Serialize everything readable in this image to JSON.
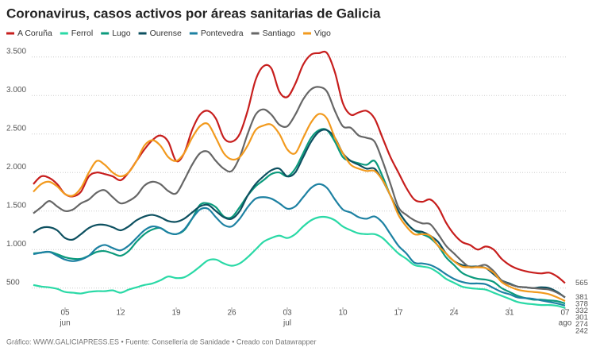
{
  "chart_data": {
    "type": "line",
    "title": "Coronavirus, casos activos por áreas sanitarias de Galicia",
    "footer": "Gráfico: WWW.GALICIAPRESS.ES • Fuente: Consellería de Sanidade • Creado con Datawrapper",
    "categories": [
      null,
      null,
      null,
      null,
      "05",
      null,
      null,
      null,
      null,
      null,
      null,
      "12",
      null,
      null,
      null,
      null,
      null,
      null,
      "19",
      null,
      null,
      null,
      null,
      null,
      null,
      "26",
      null,
      null,
      null,
      null,
      null,
      null,
      "03",
      null,
      null,
      null,
      null,
      null,
      null,
      "10",
      null,
      null,
      null,
      null,
      null,
      null,
      "17",
      null,
      null,
      null,
      null,
      null,
      null,
      "24",
      null,
      null,
      null,
      null,
      null,
      null,
      "31",
      null,
      null,
      null,
      null,
      null,
      null,
      "07"
    ],
    "x_month_labels": [
      null,
      null,
      null,
      null,
      "jun",
      null,
      null,
      null,
      null,
      null,
      null,
      null,
      null,
      null,
      null,
      null,
      null,
      null,
      null,
      null,
      null,
      null,
      null,
      null,
      null,
      null,
      null,
      null,
      null,
      null,
      null,
      null,
      "jul",
      null,
      null,
      null,
      null,
      null,
      null,
      null,
      null,
      null,
      null,
      null,
      null,
      null,
      null,
      null,
      null,
      null,
      null,
      null,
      null,
      null,
      null,
      null,
      null,
      null,
      null,
      null,
      null,
      null,
      null,
      null,
      null,
      null,
      null,
      "ago"
    ],
    "ylim": [
      250,
      3600
    ],
    "yticks": [
      500,
      {
        "value": 1000,
        "label": "1.000"
      },
      {
        "value": 1500,
        "label": "1.500"
      },
      {
        "value": 2000,
        "label": "2.000"
      },
      {
        "value": 2500,
        "label": "2.500"
      },
      {
        "value": 3000,
        "label": "3.000"
      },
      {
        "value": 3500,
        "label": "3.500"
      }
    ],
    "grid": true,
    "series": [
      {
        "name": "A Coruña",
        "color": "#c71e1d",
        "values": [
          1850,
          1950,
          1930,
          1850,
          1720,
          1690,
          1750,
          1950,
          2000,
          1980,
          1950,
          1900,
          2000,
          2150,
          2300,
          2420,
          2480,
          2400,
          2150,
          2250,
          2550,
          2750,
          2800,
          2700,
          2450,
          2400,
          2500,
          2800,
          3200,
          3380,
          3350,
          3050,
          2980,
          3150,
          3400,
          3530,
          3550,
          3550,
          3300,
          2900,
          2750,
          2780,
          2800,
          2700,
          2450,
          2200,
          2000,
          1800,
          1650,
          1620,
          1650,
          1550,
          1350,
          1200,
          1100,
          1060,
          1000,
          1040,
          1000,
          880,
          800,
          750,
          720,
          700,
          690,
          700,
          650,
          565
        ]
      },
      {
        "name": "Ferrol",
        "color": "#2ad9a6",
        "values": [
          540,
          520,
          510,
          490,
          450,
          440,
          430,
          450,
          460,
          460,
          470,
          440,
          480,
          510,
          540,
          560,
          600,
          650,
          630,
          640,
          700,
          780,
          860,
          870,
          820,
          790,
          820,
          900,
          1000,
          1100,
          1150,
          1180,
          1150,
          1200,
          1300,
          1380,
          1420,
          1420,
          1380,
          1300,
          1250,
          1210,
          1200,
          1200,
          1150,
          1050,
          950,
          880,
          800,
          780,
          760,
          700,
          620,
          570,
          520,
          500,
          490,
          480,
          440,
          400,
          360,
          320,
          300,
          290,
          280,
          280,
          270,
          242
        ]
      },
      {
        "name": "Lugo",
        "color": "#0b9a7c",
        "values": [
          950,
          960,
          970,
          940,
          900,
          880,
          880,
          920,
          970,
          980,
          950,
          920,
          980,
          1100,
          1200,
          1260,
          1280,
          1220,
          1200,
          1250,
          1400,
          1580,
          1600,
          1550,
          1430,
          1420,
          1550,
          1700,
          1820,
          1900,
          1980,
          2000,
          1950,
          2050,
          2250,
          2450,
          2550,
          2550,
          2400,
          2200,
          2150,
          2120,
          2100,
          2150,
          1950,
          1700,
          1500,
          1350,
          1250,
          1200,
          1150,
          1050,
          900,
          800,
          700,
          650,
          620,
          610,
          580,
          500,
          450,
          400,
          370,
          350,
          350,
          340,
          330,
          301
        ]
      },
      {
        "name": "Ourense",
        "color": "#0d5060",
        "values": [
          1220,
          1280,
          1290,
          1250,
          1150,
          1130,
          1200,
          1280,
          1320,
          1320,
          1290,
          1250,
          1300,
          1380,
          1430,
          1450,
          1420,
          1370,
          1360,
          1400,
          1480,
          1560,
          1580,
          1500,
          1420,
          1400,
          1500,
          1700,
          1850,
          1950,
          2030,
          2050,
          1950,
          2000,
          2200,
          2400,
          2530,
          2550,
          2450,
          2250,
          2150,
          2100,
          2050,
          2050,
          1900,
          1700,
          1500,
          1350,
          1250,
          1230,
          1180,
          1100,
          950,
          850,
          800,
          780,
          780,
          760,
          680,
          600,
          560,
          520,
          510,
          500,
          510,
          500,
          450,
          378
        ]
      },
      {
        "name": "Pontevedra",
        "color": "#1d81a2",
        "values": [
          940,
          960,
          970,
          920,
          870,
          850,
          870,
          920,
          1020,
          1060,
          1020,
          990,
          1050,
          1150,
          1250,
          1300,
          1280,
          1220,
          1200,
          1260,
          1400,
          1520,
          1530,
          1420,
          1320,
          1300,
          1400,
          1550,
          1660,
          1680,
          1660,
          1600,
          1530,
          1560,
          1680,
          1800,
          1850,
          1800,
          1650,
          1520,
          1480,
          1420,
          1400,
          1430,
          1350,
          1200,
          1050,
          950,
          830,
          820,
          800,
          750,
          680,
          620,
          580,
          560,
          560,
          550,
          500,
          450,
          420,
          380,
          370,
          360,
          340,
          320,
          300,
          274
        ]
      },
      {
        "name": "Santiago",
        "color": "#666666",
        "values": [
          1470,
          1550,
          1630,
          1560,
          1500,
          1520,
          1600,
          1650,
          1740,
          1770,
          1680,
          1600,
          1630,
          1700,
          1830,
          1880,
          1850,
          1760,
          1730,
          1900,
          2100,
          2250,
          2270,
          2150,
          2050,
          2020,
          2200,
          2500,
          2750,
          2820,
          2750,
          2620,
          2600,
          2750,
          2950,
          3080,
          3110,
          3050,
          2800,
          2600,
          2580,
          2480,
          2450,
          2400,
          2150,
          1850,
          1550,
          1450,
          1380,
          1340,
          1330,
          1200,
          1050,
          950,
          850,
          770,
          780,
          800,
          720,
          600,
          550,
          520,
          510,
          500,
          490,
          480,
          440,
          381
        ]
      },
      {
        "name": "Vigo",
        "color": "#f29a1e",
        "values": [
          1750,
          1850,
          1880,
          1820,
          1720,
          1700,
          1800,
          2000,
          2150,
          2100,
          2000,
          1950,
          2000,
          2150,
          2350,
          2420,
          2350,
          2200,
          2150,
          2250,
          2450,
          2600,
          2630,
          2450,
          2250,
          2170,
          2200,
          2350,
          2550,
          2610,
          2620,
          2500,
          2300,
          2250,
          2450,
          2650,
          2760,
          2700,
          2450,
          2250,
          2100,
          2050,
          2020,
          2020,
          1900,
          1700,
          1450,
          1300,
          1200,
          1200,
          1180,
          1050,
          950,
          850,
          780,
          770,
          770,
          760,
          700,
          580,
          520,
          480,
          460,
          450,
          440,
          420,
          380,
          332
        ]
      }
    ]
  }
}
